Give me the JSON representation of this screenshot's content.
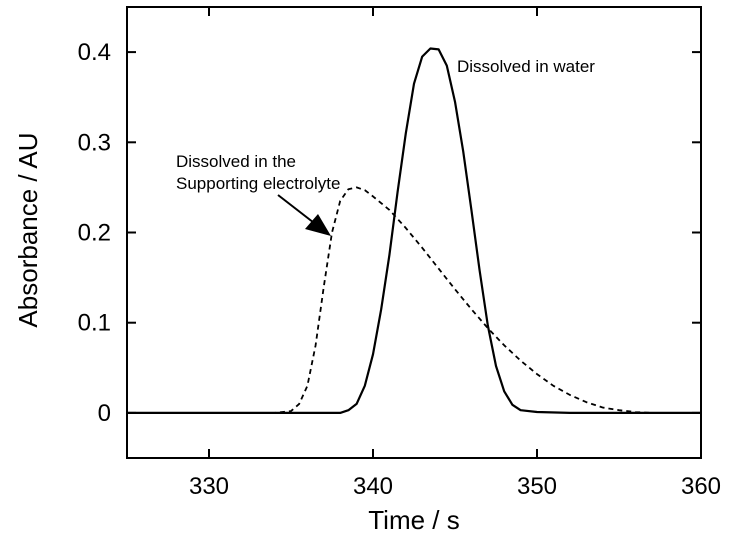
{
  "chart_data": {
    "type": "line",
    "xlabel": "Time / s",
    "ylabel": "Absorbance / AU",
    "xlim": [
      325,
      360
    ],
    "ylim": [
      -0.05,
      0.45
    ],
    "xticks": [
      330,
      340,
      350,
      360
    ],
    "yticks": [
      0,
      0.1,
      0.2,
      0.3,
      0.4
    ],
    "ytick_labels": [
      "0",
      "0.1",
      "0.2",
      "0.3",
      "0.4"
    ],
    "grid": false,
    "series": [
      {
        "style": "solid",
        "color": "#000000",
        "x": [
          325,
          336,
          338,
          338.5,
          339,
          339.5,
          340,
          340.5,
          341,
          341.5,
          342,
          342.5,
          343,
          343.5,
          344,
          344.5,
          345,
          345.5,
          346,
          346.5,
          347,
          347.5,
          348,
          348.5,
          349,
          350,
          352,
          355,
          360
        ],
        "y": [
          0,
          0,
          0,
          0.003,
          0.01,
          0.03,
          0.065,
          0.115,
          0.175,
          0.245,
          0.31,
          0.365,
          0.395,
          0.404,
          0.403,
          0.385,
          0.345,
          0.29,
          0.225,
          0.158,
          0.097,
          0.052,
          0.024,
          0.009,
          0.003,
          0.001,
          0,
          0,
          0
        ]
      },
      {
        "style": "dashed",
        "color": "#000000",
        "x": [
          325,
          334,
          335,
          335.5,
          336,
          336.5,
          337,
          337.5,
          338,
          338.5,
          339,
          339.5,
          340,
          341,
          342,
          343,
          344,
          345,
          346,
          347,
          348,
          349,
          350,
          351,
          352,
          353,
          354,
          355,
          356,
          357,
          358,
          360
        ],
        "y": [
          0,
          0,
          0.002,
          0.01,
          0.03,
          0.075,
          0.14,
          0.2,
          0.235,
          0.248,
          0.25,
          0.247,
          0.24,
          0.225,
          0.205,
          0.183,
          0.16,
          0.137,
          0.115,
          0.094,
          0.075,
          0.058,
          0.043,
          0.03,
          0.02,
          0.012,
          0.006,
          0.003,
          0.001,
          0,
          0,
          0
        ]
      }
    ],
    "annotations": [
      {
        "text": "Dissolved in water"
      },
      {
        "text": "Dissolved in the"
      },
      {
        "text": "Supporting electrolyte"
      }
    ]
  }
}
